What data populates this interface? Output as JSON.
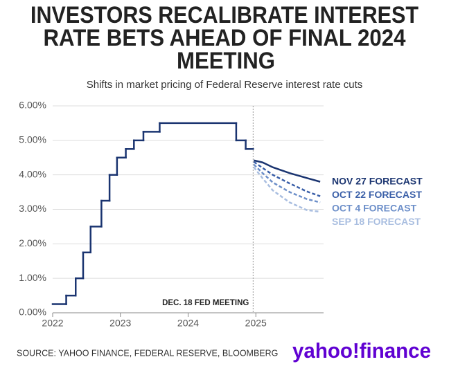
{
  "chart_data": {
    "type": "step-line",
    "title": [
      "INVESTORS RECALIBRATE INTEREST",
      "RATE BETS AHEAD OF FINAL 2024",
      "MEETING"
    ],
    "subtitle": "Shifts in market pricing of Federal Reserve interest rate cuts",
    "source": "SOURCE: YAHOO FINANCE, FEDERAL RESERVE, BLOOMBERG",
    "logo": "yahoo!finance",
    "annotation": {
      "text": "DEC. 18 FED MEETING",
      "x": 2024.96
    },
    "xlim": [
      2022,
      2026
    ],
    "xticks": [
      2022,
      2023,
      2024,
      2025
    ],
    "ylim": [
      0,
      6
    ],
    "yticks": [
      {
        "value": 0,
        "label": "0.00%"
      },
      {
        "value": 1,
        "label": "1.00%"
      },
      {
        "value": 2,
        "label": "2.00%"
      },
      {
        "value": 3,
        "label": "3.00%"
      },
      {
        "value": 4,
        "label": "4.00%"
      },
      {
        "value": 5,
        "label": "5.00%"
      },
      {
        "value": 6,
        "label": "6.00%"
      }
    ],
    "grid": true,
    "rate": {
      "color": "#1a3470",
      "x": [
        2022,
        2022.2,
        2022.34,
        2022.45,
        2022.56,
        2022.72,
        2022.84,
        2022.95,
        2023.08,
        2023.2,
        2023.34,
        2023.58,
        2024.71,
        2024.85,
        2024.96
      ],
      "values": [
        0.25,
        0.5,
        1,
        1.75,
        2.5,
        3.25,
        4,
        4.5,
        4.75,
        5,
        5.25,
        5.5,
        5,
        4.75,
        4.75
      ]
    },
    "series": [
      {
        "name": "NOV 27 FORECAST",
        "color": "#1a3470",
        "dashed": false,
        "x": [
          2024.97,
          2025.1,
          2025.25,
          2025.5,
          2025.75,
          2025.95
        ],
        "values": [
          4.42,
          4.36,
          4.22,
          4.05,
          3.91,
          3.8
        ]
      },
      {
        "name": "OCT 22 FORECAST",
        "color": "#3a5fa8",
        "dashed": true,
        "x": [
          2024.97,
          2025.1,
          2025.25,
          2025.5,
          2025.75,
          2025.95
        ],
        "values": [
          4.38,
          4.2,
          4.0,
          3.75,
          3.52,
          3.38
        ]
      },
      {
        "name": "OCT 4 FORECAST",
        "color": "#6d8fc9",
        "dashed": true,
        "x": [
          2024.97,
          2025.1,
          2025.25,
          2025.5,
          2025.75,
          2025.95
        ],
        "values": [
          4.3,
          4.05,
          3.78,
          3.5,
          3.3,
          3.2
        ]
      },
      {
        "name": "SEP 18 FORECAST",
        "color": "#a9bee0",
        "dashed": true,
        "x": [
          2024.97,
          2025.1,
          2025.25,
          2025.5,
          2025.75,
          2025.95
        ],
        "values": [
          4.22,
          3.9,
          3.55,
          3.2,
          2.98,
          2.93
        ]
      }
    ]
  }
}
